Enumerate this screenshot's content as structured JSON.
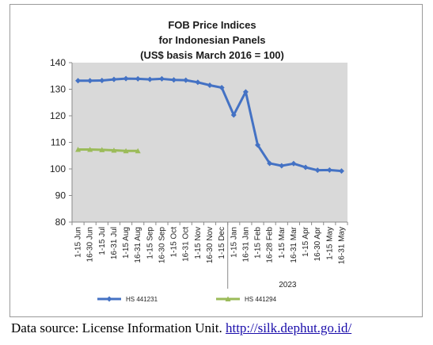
{
  "chart_data": {
    "type": "line",
    "title": [
      "FOB Price Indices",
      "for Indonesian Panels",
      "(US$ basis March 2016 = 100)"
    ],
    "xlabel": "",
    "ylabel": "",
    "ylim": [
      80,
      140
    ],
    "yticks": [
      80,
      90,
      100,
      110,
      120,
      130,
      140
    ],
    "grid": false,
    "categories": [
      "1-15 Jun",
      "16-30 Jun",
      "1-15 Jul",
      "16-31 Jul",
      "1-15 Aug",
      "16-31 Aug",
      "1-15 Sep",
      "16-30 Sep",
      "1-15 Oct",
      "16-31 Oct",
      "1-15 Nov",
      "16-30 Nov",
      "1-15 Dec",
      "1-15 Jan",
      "16-31 Jan",
      "1-15 Feb",
      "16-28 Feb",
      "1-15 Mar",
      "16-31 Mar",
      "1-15 Apr",
      "16-30 Apr",
      "1-15 May",
      "16-31 May"
    ],
    "group_label": "2023",
    "series": [
      {
        "name": "HS 441231",
        "color": "#4472c4",
        "values": [
          133.2,
          133.2,
          133.3,
          133.7,
          134.0,
          133.9,
          133.7,
          133.9,
          133.5,
          133.4,
          132.6,
          131.5,
          130.6,
          120.3,
          129.0,
          109.0,
          102.1,
          101.2,
          102.0,
          100.6,
          99.5,
          99.6,
          99.2
        ]
      },
      {
        "name": "HS 441294",
        "color": "#9bbb59",
        "values": [
          107.3,
          107.3,
          107.2,
          107.0,
          106.8,
          106.8,
          null,
          null,
          null,
          null,
          null,
          null,
          null,
          null,
          null,
          null,
          null,
          null,
          null,
          null,
          null,
          null,
          null
        ]
      }
    ],
    "legend_position": "bottom"
  },
  "source": {
    "label": "Data source: License Information Unit.",
    "link": "http://silk.dephut.go.id/"
  }
}
